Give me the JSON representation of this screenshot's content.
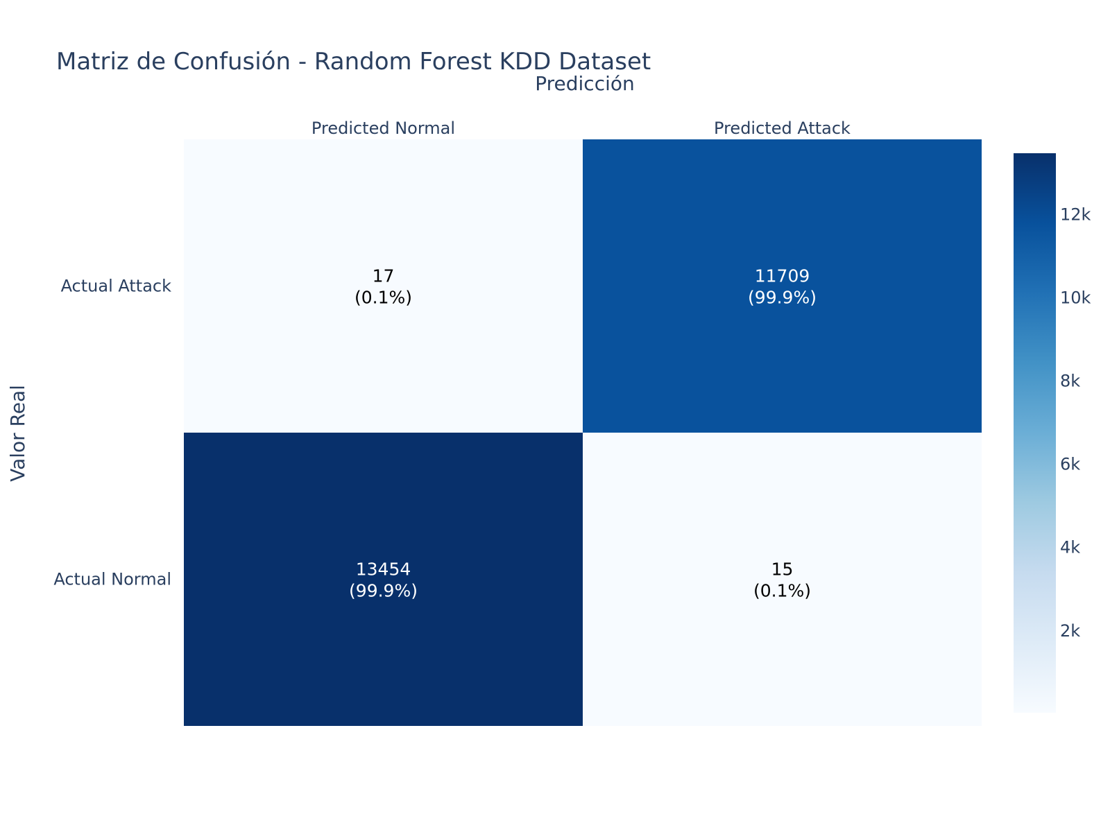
{
  "chart_data": {
    "type": "heatmap",
    "title": "Matriz de Confusión - Random Forest KDD Dataset",
    "xlabel": "Predicción",
    "ylabel": "Valor Real",
    "x_categories": [
      "Predicted Normal",
      "Predicted Attack"
    ],
    "y_categories": [
      "Actual Normal",
      "Actual Attack"
    ],
    "x_axis_side": "top",
    "values": [
      [
        13454,
        15
      ],
      [
        17,
        11709
      ]
    ],
    "cell_labels": [
      [
        "13454",
        "(99.9%)",
        "15",
        "(0.1%)"
      ],
      [
        "17",
        "(0.1%)",
        "11709",
        "(99.9%)"
      ]
    ],
    "colorscale": "Blues",
    "colorscale_stops": [
      "#f7fbff",
      "#deebf7",
      "#c6dbef",
      "#9ecae1",
      "#6baed6",
      "#4292c6",
      "#2171b5",
      "#08519c",
      "#08306b"
    ],
    "colorbar": {
      "range": [
        15,
        13454
      ],
      "ticks": [
        2000,
        4000,
        6000,
        8000,
        10000,
        12000
      ],
      "tick_labels": [
        "2k",
        "4k",
        "6k",
        "8k",
        "10k",
        "12k"
      ]
    },
    "grid": false
  }
}
